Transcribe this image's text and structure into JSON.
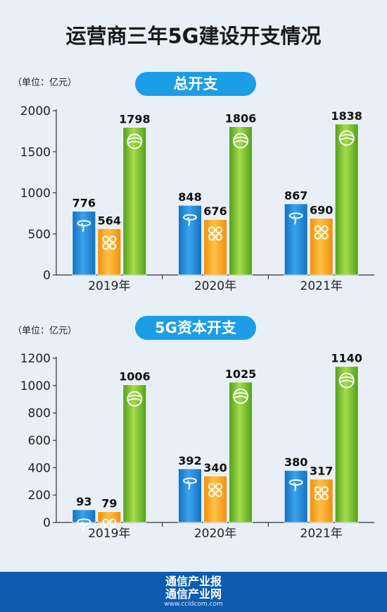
{
  "title": "运营商三年5G建设开支情况",
  "colors": {
    "telecom": "#1f88d8",
    "unicom": "#f5a41a",
    "mobile": "#7cc12a",
    "pill": "#1b9ee6",
    "footer": "#0d5cb0"
  },
  "icons": [
    "china-telecom-logo-icon",
    "china-unicom-logo-icon",
    "china-mobile-logo-icon"
  ],
  "footer": {
    "line1": "通信产业报",
    "line2": "通信产业网",
    "url": "www.ccidcom.com"
  },
  "chart_data": [
    {
      "type": "bar",
      "title": "总开支",
      "unit_label": "（单位：亿元）",
      "categories": [
        "2019年",
        "2020年",
        "2021年"
      ],
      "series": [
        {
          "values": [
            776,
            848,
            867
          ]
        },
        {
          "values": [
            564,
            676,
            690
          ]
        },
        {
          "values": [
            1798,
            1806,
            1838
          ]
        }
      ],
      "ylim": [
        0,
        2000
      ],
      "yticks": [
        0,
        500,
        1000,
        1500,
        2000
      ],
      "grid": false,
      "legend": "none"
    },
    {
      "type": "bar",
      "title": "5G资本开支",
      "unit_label": "（单位：亿元）",
      "categories": [
        "2019年",
        "2020年",
        "2021年"
      ],
      "series": [
        {
          "values": [
            93,
            392,
            380
          ]
        },
        {
          "values": [
            79,
            340,
            317
          ]
        },
        {
          "values": [
            1006,
            1025,
            1140
          ]
        }
      ],
      "ylim": [
        0,
        1200
      ],
      "yticks": [
        0,
        200,
        400,
        600,
        800,
        1000,
        1200
      ],
      "grid": false,
      "legend": "none"
    }
  ]
}
